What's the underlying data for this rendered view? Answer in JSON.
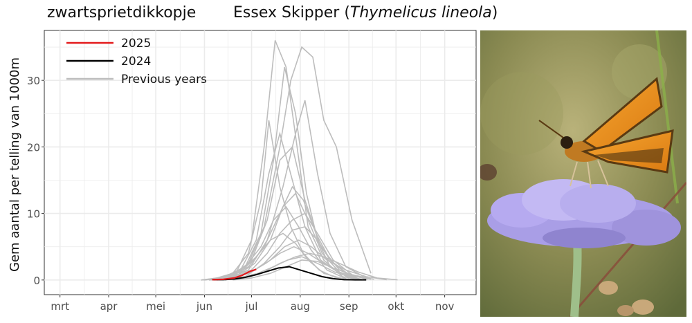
{
  "page_title": "zwartsprietdikkopje",
  "species": {
    "common_name": "Essex Skipper",
    "open_paren": "(",
    "latin_name": "Thymelicus lineola",
    "close_paren": ")"
  },
  "photo": {
    "description_icon": "butterfly-on-scabious-flower-photo"
  },
  "colors": {
    "series_2025": "#e31a1c",
    "series_2024": "#000000",
    "series_previous": "#bdbdbd",
    "grid": "#ebebeb",
    "axis_text": "#4d4d4d"
  },
  "chart_data": {
    "type": "line",
    "ylabel": "Gem aantal per telling van 1000m",
    "xlabel": "",
    "x_unit": "day_of_year",
    "xlim": [
      50,
      325
    ],
    "ylim": [
      -2.2,
      37.5
    ],
    "y_ticks": [
      0,
      10,
      20,
      30
    ],
    "x_ticks": [
      {
        "label": "mrt",
        "day": 60
      },
      {
        "label": "apr",
        "day": 91
      },
      {
        "label": "mei",
        "day": 121
      },
      {
        "label": "jun",
        "day": 152
      },
      {
        "label": "jul",
        "day": 182
      },
      {
        "label": "aug",
        "day": 213
      },
      {
        "label": "sep",
        "day": 244
      },
      {
        "label": "okt",
        "day": 274
      },
      {
        "label": "nov",
        "day": 305
      }
    ],
    "grid": true,
    "legend": {
      "position": "top-left",
      "entries": [
        "2025",
        "2024",
        "Previous years"
      ]
    },
    "series": [
      {
        "name": "2025",
        "x": [
          157,
          164,
          171,
          176,
          181,
          185
        ],
        "y": [
          0.05,
          0.1,
          0.3,
          0.7,
          1.3,
          1.6
        ]
      },
      {
        "name": "2024",
        "x": [
          157,
          164,
          171,
          178,
          185,
          192,
          199,
          206,
          213,
          220,
          227,
          234,
          241,
          248,
          255
        ],
        "y": [
          0.05,
          0.05,
          0.15,
          0.4,
          0.8,
          1.3,
          1.8,
          2.0,
          1.5,
          1.0,
          0.5,
          0.2,
          0.05,
          0.02,
          0.02
        ]
      },
      {
        "name": "Previous years",
        "group": "previous",
        "series": [
          {
            "x": [
              150,
              160,
              170,
              180,
              188,
              193,
              200,
              207,
              215,
              225,
              235,
              248
            ],
            "y": [
              0,
              0.3,
              1.0,
              4.0,
              12.0,
              24.0,
              14.0,
              8.0,
              4.0,
              1.5,
              0.4,
              0
            ]
          },
          {
            "x": [
              150,
              162,
              172,
              182,
              190,
              197,
              204,
              211,
              218,
              228,
              240,
              252
            ],
            "y": [
              0,
              0.2,
              1.0,
              6.0,
              20.0,
              36.0,
              32.0,
              20.0,
              8.0,
              3.0,
              0.5,
              0
            ]
          },
          {
            "x": [
              155,
              168,
              180,
              190,
              200,
              207,
              214,
              221,
              228,
              236,
              246,
              258
            ],
            "y": [
              0,
              0.5,
              2.5,
              8.0,
              20.0,
              30.0,
              35.0,
              33.5,
              24.0,
              20.0,
              9.0,
              1.0
            ]
          },
          {
            "x": [
              152,
              165,
              178,
              188,
              196,
              203,
              210,
              217,
              224,
              232,
              244
            ],
            "y": [
              0,
              0.5,
              2.0,
              7.0,
              18.0,
              32.0,
              25.0,
              13.0,
              6.0,
              2.0,
              0.3
            ]
          },
          {
            "x": [
              155,
              168,
              180,
              192,
              202,
              210,
              216,
              224,
              232,
              242,
              255
            ],
            "y": [
              0,
              0.3,
              1.5,
              6.0,
              14.0,
              22.0,
              27.0,
              16.0,
              7.0,
              2.0,
              0.3
            ]
          },
          {
            "x": [
              150,
              163,
              175,
              185,
              193,
              200,
              208,
              216,
              226,
              238,
              250
            ],
            "y": [
              0,
              0.3,
              1.5,
              6.0,
              16.0,
              22.0,
              15.0,
              8.0,
              3.0,
              1.0,
              0.1
            ]
          },
          {
            "x": [
              160,
              172,
              182,
              192,
              200,
              208,
              216,
              226,
              238,
              250
            ],
            "y": [
              0,
              0.8,
              3.0,
              9.0,
              18.0,
              20.0,
              12.0,
              5.0,
              1.5,
              0.2
            ]
          },
          {
            "x": [
              155,
              168,
              180,
              190,
              200,
              208,
              215,
              223,
              232,
              244,
              256
            ],
            "y": [
              0,
              0.5,
              2.0,
              5.0,
              10.0,
              14.0,
              12.0,
              7.0,
              3.0,
              0.8,
              0.1
            ]
          },
          {
            "x": [
              160,
              172,
              184,
              194,
              202,
              210,
              218,
              227,
              238,
              250
            ],
            "y": [
              0,
              0.6,
              2.5,
              6.0,
              11.0,
              13.0,
              9.0,
              4.0,
              1.2,
              0.2
            ]
          },
          {
            "x": [
              152,
              165,
              178,
              188,
              196,
              204,
              212,
              220,
              230,
              242
            ],
            "y": [
              0,
              0.4,
              2.0,
              5.0,
              9.0,
              11.0,
              8.0,
              4.5,
              1.5,
              0.2
            ]
          },
          {
            "x": [
              158,
              170,
              182,
              192,
              200,
              208,
              216,
              224,
              234,
              246,
              260
            ],
            "y": [
              0,
              0.3,
              1.5,
              4.0,
              7.0,
              9.0,
              10.0,
              7.0,
              3.0,
              0.8,
              0.1
            ]
          },
          {
            "x": [
              165,
              178,
              190,
              200,
              208,
              216,
              224,
              232,
              242,
              254
            ],
            "y": [
              0,
              0.5,
              2.5,
              5.0,
              7.5,
              8.0,
              6.0,
              3.0,
              1.0,
              0.2
            ]
          },
          {
            "x": [
              150,
              162,
              175,
              185,
              194,
              202,
              210,
              218,
              228,
              240
            ],
            "y": [
              0,
              0.3,
              1.2,
              3.5,
              6.0,
              7.0,
              5.5,
              3.0,
              1.0,
              0.2
            ]
          },
          {
            "x": [
              160,
              172,
              184,
              194,
              203,
              212,
              220,
              230,
              242,
              255,
              268
            ],
            "y": [
              0,
              0.4,
              1.5,
              3.0,
              5.0,
              6.0,
              5.0,
              3.0,
              1.5,
              0.5,
              0.05
            ]
          },
          {
            "x": [
              155,
              168,
              180,
              191,
              200,
              209,
              218,
              228,
              240,
              252
            ],
            "y": [
              0,
              0.3,
              1.0,
              2.5,
              4.0,
              5.0,
              4.0,
              2.5,
              0.8,
              0.1
            ]
          },
          {
            "x": [
              165,
              178,
              190,
              200,
              210,
              219,
              228,
              238,
              250,
              262,
              275
            ],
            "y": [
              0,
              0.4,
              1.2,
              2.5,
              3.5,
              4.0,
              3.5,
              2.5,
              1.2,
              0.3,
              0.02
            ]
          },
          {
            "x": [
              160,
              174,
              186,
              196,
              205,
              214,
              224,
              235,
              248
            ],
            "y": [
              0,
              0.3,
              1.0,
              2.0,
              3.0,
              3.5,
              2.5,
              1.2,
              0.2
            ]
          },
          {
            "x": [
              170,
              182,
              194,
              204,
              214,
              224,
              234,
              246,
              258
            ],
            "y": [
              0,
              0.3,
              1.0,
              2.0,
              3.0,
              2.8,
              1.8,
              0.8,
              0.1
            ]
          }
        ]
      }
    ]
  }
}
